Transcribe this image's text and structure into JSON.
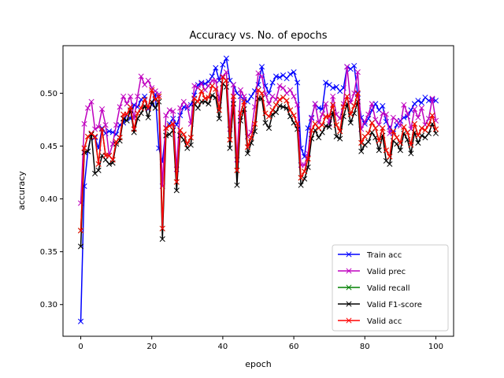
{
  "chart_data": {
    "type": "line",
    "title": "Accuracy vs. No. of epochs",
    "xlabel": "epoch",
    "ylabel": "accuracy",
    "xlim": [
      -5,
      105
    ],
    "ylim": [
      0.27,
      0.545
    ],
    "xticks": [
      0,
      20,
      40,
      60,
      80,
      100
    ],
    "yticks": [
      0.3,
      0.35,
      0.4,
      0.45,
      0.5
    ],
    "ytick_labels": [
      "0.30",
      "0.35",
      "0.40",
      "0.45",
      "0.50"
    ],
    "legend_position": "lower right",
    "marker": "x",
    "series": [
      {
        "name": "Train acc",
        "color": "#0000ff",
        "values": [
          0.284,
          0.412,
          0.445,
          0.462,
          0.458,
          0.448,
          0.467,
          0.462,
          0.464,
          0.463,
          0.461,
          0.47,
          0.472,
          0.48,
          0.476,
          0.489,
          0.487,
          0.494,
          0.497,
          0.485,
          0.489,
          0.499,
          0.448,
          0.435,
          0.467,
          0.471,
          0.476,
          0.47,
          0.479,
          0.487,
          0.486,
          0.489,
          0.498,
          0.508,
          0.51,
          0.509,
          0.511,
          0.516,
          0.524,
          0.512,
          0.527,
          0.533,
          0.512,
          0.508,
          0.5,
          0.497,
          0.494,
          0.492,
          0.497,
          0.502,
          0.508,
          0.525,
          0.507,
          0.5,
          0.51,
          0.516,
          0.515,
          0.517,
          0.514,
          0.518,
          0.52,
          0.51,
          0.448,
          0.44,
          0.467,
          0.477,
          0.49,
          0.486,
          0.485,
          0.51,
          0.508,
          0.505,
          0.506,
          0.502,
          0.505,
          0.525,
          0.523,
          0.526,
          0.499,
          0.477,
          0.471,
          0.476,
          0.484,
          0.49,
          0.484,
          0.488,
          0.473,
          0.468,
          0.462,
          0.47,
          0.474,
          0.477,
          0.478,
          0.484,
          0.49,
          0.493,
          0.491,
          0.496,
          0.493,
          0.494,
          0.493
        ]
      },
      {
        "name": "Valid prec",
        "color": "#bf00bf",
        "values": [
          0.396,
          0.471,
          0.486,
          0.492,
          0.466,
          0.468,
          0.485,
          0.47,
          0.441,
          0.452,
          0.47,
          0.487,
          0.497,
          0.49,
          0.497,
          0.476,
          0.497,
          0.516,
          0.508,
          0.512,
          0.505,
          0.502,
          0.499,
          0.412,
          0.479,
          0.484,
          0.483,
          0.428,
          0.486,
          0.492,
          0.488,
          0.471,
          0.507,
          0.505,
          0.509,
          0.503,
          0.507,
          0.512,
          0.512,
          0.493,
          0.516,
          0.52,
          0.466,
          0.508,
          0.437,
          0.503,
          0.497,
          0.459,
          0.463,
          0.487,
          0.519,
          0.516,
          0.499,
          0.49,
          0.497,
          0.494,
          0.507,
          0.505,
          0.5,
          0.503,
          0.497,
          0.489,
          0.432,
          0.432,
          0.443,
          0.476,
          0.49,
          0.472,
          0.48,
          0.49,
          0.471,
          0.497,
          0.48,
          0.476,
          0.49,
          0.525,
          0.491,
          0.5,
          0.52,
          0.466,
          0.473,
          0.48,
          0.49,
          0.475,
          0.47,
          0.481,
          0.48,
          0.462,
          0.477,
          0.474,
          0.469,
          0.489,
          0.481,
          0.466,
          0.485,
          0.477,
          0.486,
          0.47,
          0.476,
          0.495,
          0.474
        ]
      },
      {
        "name": "Valid recall",
        "color": "#008000",
        "values": [
          0.37,
          0.448,
          0.459,
          0.462,
          0.459,
          0.433,
          0.466,
          0.441,
          0.441,
          0.437,
          0.454,
          0.458,
          0.48,
          0.48,
          0.487,
          0.466,
          0.481,
          0.486,
          0.494,
          0.486,
          0.503,
          0.494,
          0.497,
          0.372,
          0.467,
          0.469,
          0.471,
          0.416,
          0.465,
          0.461,
          0.452,
          0.458,
          0.495,
          0.492,
          0.502,
          0.495,
          0.496,
          0.507,
          0.504,
          0.484,
          0.515,
          0.512,
          0.456,
          0.497,
          0.427,
          0.481,
          0.492,
          0.449,
          0.458,
          0.471,
          0.503,
          0.5,
          0.481,
          0.478,
          0.484,
          0.489,
          0.494,
          0.496,
          0.493,
          0.484,
          0.479,
          0.471,
          0.42,
          0.426,
          0.438,
          0.465,
          0.471,
          0.467,
          0.47,
          0.478,
          0.478,
          0.489,
          0.47,
          0.464,
          0.487,
          0.497,
          0.48,
          0.488,
          0.5,
          0.453,
          0.459,
          0.462,
          0.472,
          0.467,
          0.455,
          0.467,
          0.446,
          0.44,
          0.464,
          0.458,
          0.453,
          0.468,
          0.463,
          0.451,
          0.471,
          0.46,
          0.467,
          0.465,
          0.47,
          0.479,
          0.466
        ]
      },
      {
        "name": "Valid F1-score",
        "color": "#000000",
        "values": [
          0.355,
          0.444,
          0.445,
          0.461,
          0.424,
          0.427,
          0.441,
          0.437,
          0.433,
          0.434,
          0.452,
          0.455,
          0.476,
          0.474,
          0.484,
          0.463,
          0.476,
          0.481,
          0.488,
          0.477,
          0.492,
          0.486,
          0.492,
          0.362,
          0.46,
          0.461,
          0.465,
          0.408,
          0.46,
          0.456,
          0.448,
          0.451,
          0.49,
          0.486,
          0.492,
          0.492,
          0.49,
          0.498,
          0.496,
          0.476,
          0.509,
          0.506,
          0.448,
          0.49,
          0.413,
          0.474,
          0.485,
          0.443,
          0.453,
          0.464,
          0.495,
          0.495,
          0.472,
          0.467,
          0.48,
          0.482,
          0.488,
          0.487,
          0.486,
          0.478,
          0.472,
          0.466,
          0.413,
          0.419,
          0.43,
          0.457,
          0.465,
          0.458,
          0.463,
          0.469,
          0.468,
          0.482,
          0.459,
          0.457,
          0.478,
          0.49,
          0.472,
          0.481,
          0.492,
          0.445,
          0.451,
          0.454,
          0.463,
          0.458,
          0.446,
          0.46,
          0.436,
          0.433,
          0.455,
          0.452,
          0.446,
          0.462,
          0.456,
          0.443,
          0.463,
          0.453,
          0.46,
          0.458,
          0.462,
          0.471,
          0.462
        ]
      },
      {
        "name": "Valid acc",
        "color": "#ff0000",
        "values": [
          0.37,
          0.448,
          0.459,
          0.462,
          0.459,
          0.433,
          0.466,
          0.441,
          0.441,
          0.437,
          0.454,
          0.458,
          0.48,
          0.48,
          0.487,
          0.466,
          0.481,
          0.486,
          0.494,
          0.486,
          0.503,
          0.494,
          0.497,
          0.372,
          0.467,
          0.469,
          0.471,
          0.416,
          0.465,
          0.461,
          0.452,
          0.458,
          0.495,
          0.492,
          0.502,
          0.495,
          0.496,
          0.507,
          0.504,
          0.484,
          0.515,
          0.512,
          0.456,
          0.497,
          0.427,
          0.481,
          0.492,
          0.449,
          0.458,
          0.471,
          0.503,
          0.5,
          0.481,
          0.478,
          0.484,
          0.489,
          0.494,
          0.496,
          0.493,
          0.484,
          0.479,
          0.471,
          0.42,
          0.426,
          0.438,
          0.465,
          0.471,
          0.467,
          0.47,
          0.478,
          0.478,
          0.489,
          0.47,
          0.464,
          0.487,
          0.497,
          0.48,
          0.488,
          0.5,
          0.453,
          0.459,
          0.462,
          0.472,
          0.467,
          0.455,
          0.467,
          0.446,
          0.44,
          0.464,
          0.458,
          0.453,
          0.468,
          0.463,
          0.451,
          0.471,
          0.46,
          0.467,
          0.465,
          0.47,
          0.479,
          0.466
        ]
      }
    ]
  }
}
